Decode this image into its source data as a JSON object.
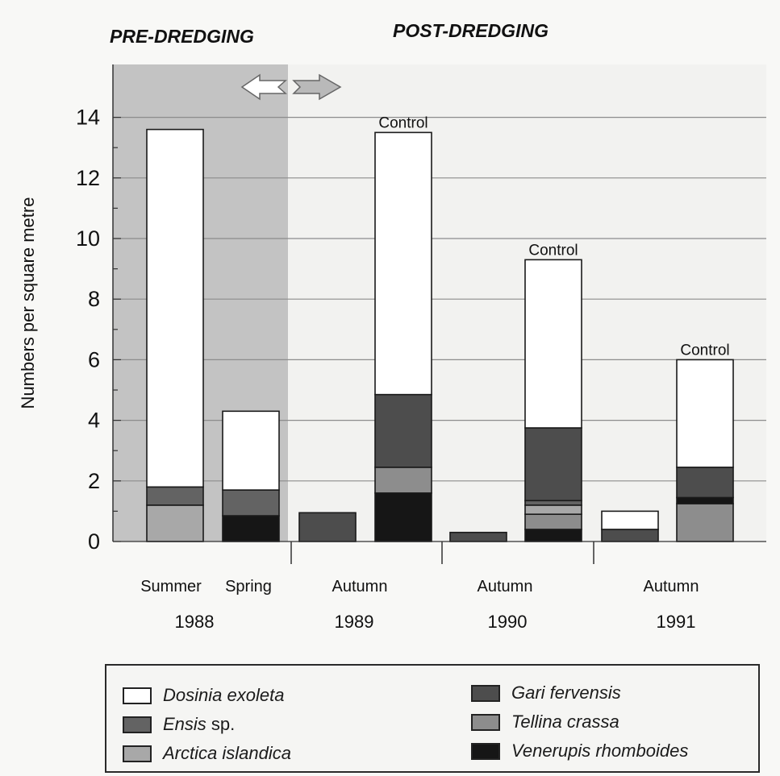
{
  "chart_data": {
    "type": "bar",
    "stacked": true,
    "ylabel": "Numbers per square metre",
    "ylim": [
      0,
      14.8
    ],
    "yticks": [
      0,
      2,
      4,
      6,
      8,
      10,
      12,
      14
    ],
    "period_labels": {
      "pre": "PRE-DREDGING",
      "post": "POST-DREDGING"
    },
    "grid": true,
    "series": [
      {
        "name": "Venerupis rhomboides",
        "color": "#161616"
      },
      {
        "name": "Arctica islandica",
        "color": "#a8a8a8"
      },
      {
        "name": "Tellina crassa",
        "color": "#8d8d8d"
      },
      {
        "name": "Ensis sp.",
        "color": "#636363"
      },
      {
        "name": "Gari fervensis",
        "color": "#4d4d4d"
      },
      {
        "name": "Dosinia exoleta",
        "color": "#ffffff"
      }
    ],
    "bars": [
      {
        "season": "Summer",
        "control": false,
        "values": {
          "Arctica islandica": 1.2,
          "Ensis sp.": 0.6,
          "Dosinia exoleta": 11.8
        }
      },
      {
        "season": "Spring",
        "control": false,
        "values": {
          "Venerupis rhomboides": 0.85,
          "Ensis sp.": 0.85,
          "Dosinia exoleta": 2.6
        }
      },
      {
        "season": "Autumn",
        "control": false,
        "values": {
          "Gari fervensis": 0.95
        }
      },
      {
        "season": "",
        "control": true,
        "values": {
          "Venerupis rhomboides": 1.6,
          "Tellina crassa": 0.85,
          "Gari fervensis": 2.4,
          "Dosinia exoleta": 8.65
        }
      },
      {
        "season": "Autumn",
        "control": false,
        "values": {
          "Gari fervensis": 0.3
        }
      },
      {
        "season": "",
        "control": true,
        "values": {
          "Venerupis rhomboides": 0.4,
          "Tellina crassa": 0.5,
          "Arctica islandica": 0.3,
          "Ensis sp.": 0.15,
          "Gari fervensis": 2.4,
          "Dosinia exoleta": 5.55
        }
      },
      {
        "season": "Autumn",
        "control": false,
        "values": {
          "Gari fervensis": 0.4,
          "Dosinia exoleta": 0.6
        }
      },
      {
        "season": "",
        "control": true,
        "values": {
          "Tellina crassa": 1.25,
          "Venerupis rhomboides": 0.2,
          "Gari fervensis": 1.0,
          "Dosinia exoleta": 3.55
        }
      }
    ],
    "control_label": "Control",
    "years": [
      "1988",
      "1989",
      "1990",
      "1991"
    ]
  },
  "legend": [
    {
      "species": "Dosinia exoleta",
      "suffix": "",
      "color": "#ffffff"
    },
    {
      "species": "Ensis",
      "suffix": " sp.",
      "color": "#636363"
    },
    {
      "species": "Arctica islandica",
      "suffix": "",
      "color": "#a8a8a8"
    },
    {
      "species": "Gari fervensis",
      "suffix": "",
      "color": "#4d4d4d"
    },
    {
      "species": "Tellina crassa",
      "suffix": "",
      "color": "#8d8d8d"
    },
    {
      "species": "Venerupis rhomboides",
      "suffix": "",
      "color": "#161616"
    }
  ]
}
